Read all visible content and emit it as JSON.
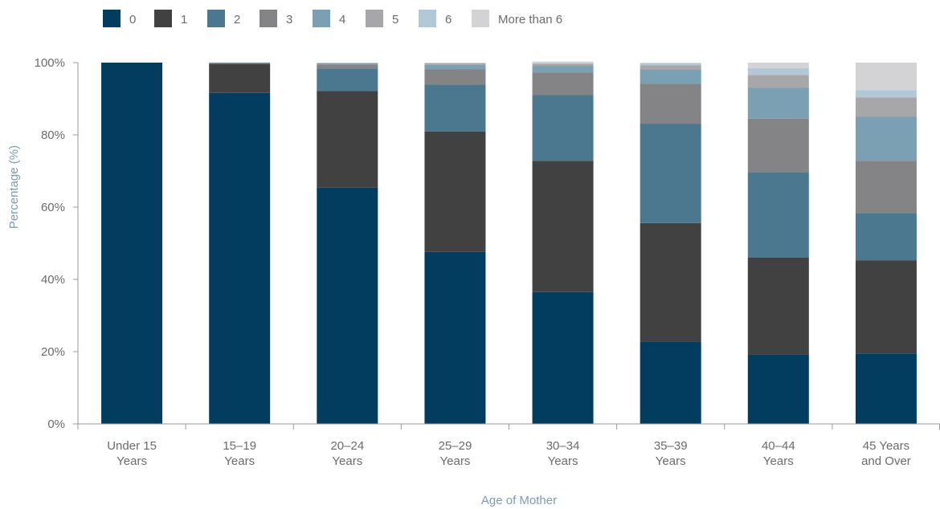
{
  "chart_data": {
    "type": "bar",
    "stacked": true,
    "xlabel": "Age of Mother",
    "ylabel": "Percentage (%)",
    "ylim": [
      0,
      100
    ],
    "yticks": [
      0,
      20,
      40,
      60,
      80,
      100
    ],
    "ytick_labels": [
      "0%",
      "20%",
      "40%",
      "60%",
      "80%",
      "100%"
    ],
    "categories": [
      [
        "Under 15",
        "Years"
      ],
      [
        "15–19",
        "Years"
      ],
      [
        "20–24",
        "Years"
      ],
      [
        "25–29",
        "Years"
      ],
      [
        "30–34",
        "Years"
      ],
      [
        "35–39",
        "Years"
      ],
      [
        "40–44",
        "Years"
      ],
      [
        "45 Years",
        "and Over"
      ]
    ],
    "legend_position": "top-left",
    "grid": false,
    "series": [
      {
        "name": "0",
        "color": "#023d5f",
        "values": [
          100,
          91.6,
          65.4,
          47.6,
          36.5,
          22.8,
          19.2,
          19.5
        ]
      },
      {
        "name": "1",
        "color": "#414141",
        "values": [
          0,
          8.0,
          26.7,
          33.3,
          36.3,
          32.8,
          26.8,
          25.8
        ]
      },
      {
        "name": "2",
        "color": "#4b788f",
        "values": [
          0,
          0.3,
          6.3,
          13.0,
          18.2,
          27.5,
          23.7,
          13.1
        ]
      },
      {
        "name": "3",
        "color": "#848486",
        "values": [
          0,
          0.1,
          1.1,
          4.3,
          6.3,
          11.0,
          14.8,
          14.4
        ]
      },
      {
        "name": "4",
        "color": "#7b9fb3",
        "values": [
          0,
          0,
          0.3,
          1.2,
          1.8,
          4.0,
          8.5,
          12.2
        ]
      },
      {
        "name": "5",
        "color": "#a7a7a9",
        "values": [
          0,
          0,
          0.1,
          0.4,
          0.6,
          1.2,
          3.6,
          5.4
        ]
      },
      {
        "name": "6",
        "color": "#b2c8d6",
        "values": [
          0,
          0,
          0,
          0.1,
          0.2,
          0.5,
          1.9,
          2.0
        ]
      },
      {
        "name": "More than 6",
        "color": "#d3d3d5",
        "values": [
          0,
          0,
          0.1,
          0.1,
          0.4,
          0.2,
          1.5,
          7.6
        ]
      }
    ]
  }
}
